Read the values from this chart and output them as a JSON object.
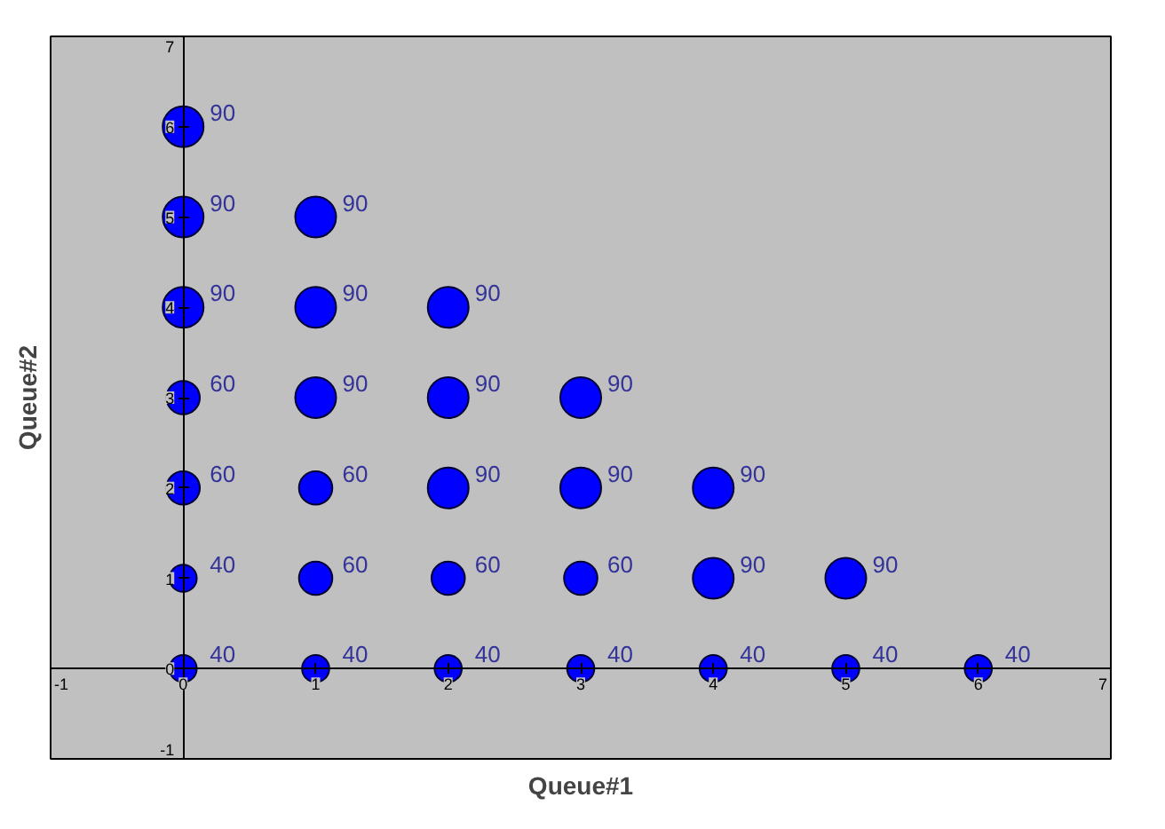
{
  "chart_data": {
    "type": "bubble",
    "xlabel": "Queue#1",
    "ylabel": "Queue#2",
    "x": [
      0,
      1,
      2,
      3,
      4,
      5,
      6,
      0,
      1,
      2,
      3,
      4,
      5,
      0,
      1,
      2,
      3,
      4,
      0,
      1,
      2,
      3,
      0,
      1,
      2,
      0,
      1,
      0
    ],
    "values": [
      0,
      0,
      0,
      0,
      0,
      0,
      0,
      1,
      1,
      1,
      1,
      1,
      1,
      2,
      2,
      2,
      2,
      2,
      3,
      3,
      3,
      3,
      4,
      4,
      4,
      5,
      5,
      6
    ],
    "sizes": [
      40,
      40,
      40,
      40,
      40,
      40,
      40,
      40,
      60,
      60,
      60,
      90,
      90,
      60,
      60,
      90,
      90,
      90,
      60,
      90,
      90,
      90,
      90,
      90,
      90,
      90,
      90,
      90
    ],
    "value_labels": [
      "40",
      "40",
      "40",
      "40",
      "40",
      "40",
      "40",
      "40",
      "60",
      "60",
      "60",
      "90",
      "90",
      "60",
      "60",
      "90",
      "90",
      "90",
      "60",
      "90",
      "90",
      "90",
      "90",
      "90",
      "90",
      "90",
      "90",
      "90"
    ],
    "color": "#0000ff",
    "xlim": [
      -1,
      7
    ],
    "ylim": [
      -1,
      7
    ],
    "xticks": [
      -1,
      0,
      1,
      2,
      3,
      4,
      5,
      6,
      7
    ],
    "yticks": [
      -1,
      0,
      1,
      2,
      3,
      4,
      5,
      6,
      7
    ],
    "grid": false,
    "legend": false,
    "marker": "circle"
  }
}
